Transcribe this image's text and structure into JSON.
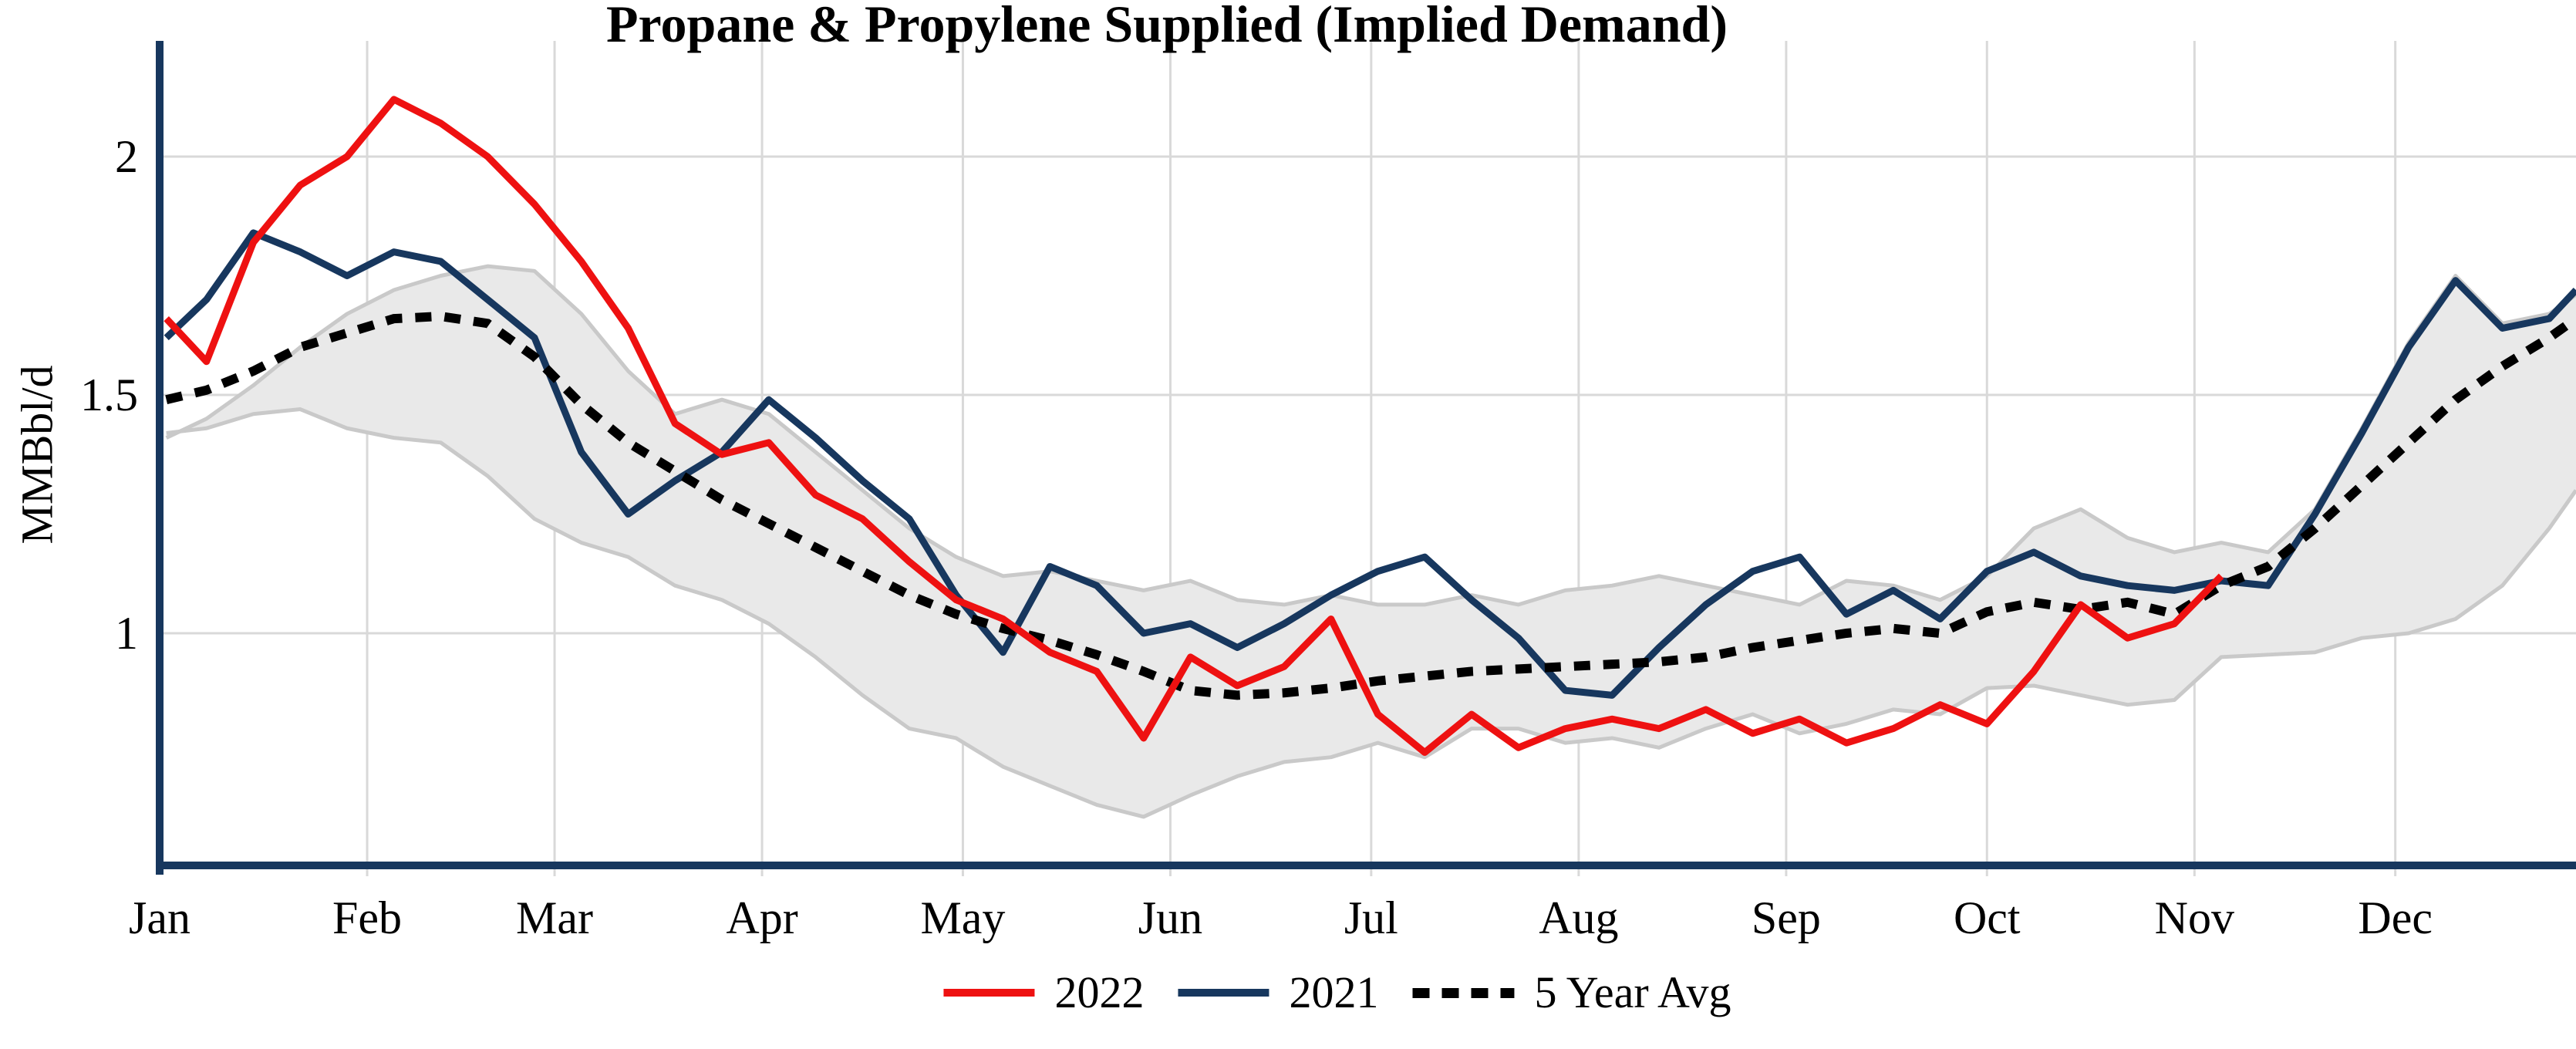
{
  "title": "Propane & Propylene Supplied (Implied Demand)",
  "y_axis_title": "MMBbl/d",
  "legend": {
    "items": [
      {
        "label": "2022",
        "color": "#ee1111",
        "style": "solid"
      },
      {
        "label": "2021",
        "color": "#17375e",
        "style": "solid"
      },
      {
        "label": "5 Year Avg",
        "color": "#000000",
        "style": "dotted"
      }
    ]
  },
  "colors": {
    "red_2022": "#ee1111",
    "navy_2021": "#17375e",
    "avg_dotted": "#000000",
    "band_fill": "#e9e9e9",
    "band_edge": "#c9c9c9",
    "gridline": "#d9d9d9",
    "axis": "#17375e",
    "text": "#000000"
  },
  "chart_data": {
    "type": "line",
    "title": "Propane & Propylene Supplied (Implied Demand)",
    "ylabel": "MMBbl/d",
    "xlabel": "",
    "ylim": [
      0.51,
      2.24
    ],
    "y_ticks": [
      2,
      1.5,
      1
    ],
    "y_tick_labels": [
      "2",
      "1.5",
      "1"
    ],
    "months": [
      "Jan",
      "Feb",
      "Mar",
      "Apr",
      "May",
      "Jun",
      "Jul",
      "Aug",
      "Sep",
      "Oct",
      "Nov",
      "Dec"
    ],
    "month_start_days": [
      0,
      31,
      59,
      90,
      120,
      151,
      181,
      212,
      243,
      273,
      304,
      334
    ],
    "grid": true,
    "legend_position": "bottom",
    "x_unit": "day_of_year",
    "days_full": [
      1,
      7,
      14,
      21,
      28,
      35,
      42,
      49,
      56,
      63,
      70,
      77,
      84,
      91,
      98,
      105,
      112,
      119,
      126,
      133,
      140,
      147,
      154,
      161,
      168,
      175,
      182,
      189,
      196,
      203,
      210,
      217,
      224,
      231,
      238,
      245,
      252,
      259,
      266,
      273,
      280,
      287,
      294,
      301,
      308,
      315,
      322,
      329,
      336,
      343,
      350,
      357,
      361
    ],
    "days_2022": [
      1,
      7,
      14,
      21,
      28,
      35,
      42,
      49,
      56,
      63,
      70,
      77,
      84,
      91,
      98,
      105,
      112,
      119,
      126,
      133,
      140,
      147,
      154,
      161,
      168,
      175,
      182,
      189,
      196,
      203,
      210,
      217,
      224,
      231,
      238,
      245,
      252,
      259,
      266,
      273,
      280,
      287,
      294,
      301,
      308
    ],
    "series": [
      {
        "name": "2022",
        "color": "#ee1111",
        "style": "solid",
        "values": [
          1.66,
          1.57,
          1.82,
          1.94,
          2.0,
          2.12,
          2.07,
          2.0,
          1.9,
          1.78,
          1.64,
          1.44,
          1.375,
          1.4,
          1.29,
          1.24,
          1.15,
          1.07,
          1.03,
          0.96,
          0.92,
          0.78,
          0.95,
          0.89,
          0.93,
          1.03,
          0.83,
          0.75,
          0.83,
          0.76,
          0.8,
          0.82,
          0.8,
          0.84,
          0.79,
          0.82,
          0.77,
          0.8,
          0.85,
          0.81,
          0.92,
          1.06,
          0.99,
          1.02,
          1.12
        ]
      },
      {
        "name": "2021",
        "color": "#17375e",
        "style": "solid",
        "values": [
          1.62,
          1.7,
          1.84,
          1.8,
          1.75,
          1.8,
          1.78,
          1.7,
          1.62,
          1.38,
          1.25,
          1.32,
          1.38,
          1.49,
          1.41,
          1.32,
          1.24,
          1.08,
          0.96,
          1.14,
          1.1,
          1.0,
          1.02,
          0.97,
          1.02,
          1.08,
          1.13,
          1.16,
          1.07,
          0.99,
          0.88,
          0.87,
          0.97,
          1.06,
          1.13,
          1.16,
          1.04,
          1.09,
          1.03,
          1.13,
          1.17,
          1.12,
          1.1,
          1.09,
          1.11,
          1.1,
          1.25,
          1.42,
          1.6,
          1.74,
          1.64,
          1.66,
          1.72
        ]
      },
      {
        "name": "5 Year Avg",
        "color": "#000000",
        "style": "dotted",
        "values": [
          1.49,
          1.51,
          1.55,
          1.6,
          1.63,
          1.66,
          1.665,
          1.65,
          1.58,
          1.48,
          1.4,
          1.34,
          1.28,
          1.23,
          1.18,
          1.13,
          1.08,
          1.04,
          1.01,
          0.985,
          0.955,
          0.92,
          0.88,
          0.87,
          0.875,
          0.885,
          0.9,
          0.91,
          0.92,
          0.925,
          0.93,
          0.935,
          0.94,
          0.95,
          0.97,
          0.985,
          1.0,
          1.01,
          1.0,
          1.045,
          1.065,
          1.05,
          1.065,
          1.04,
          1.1,
          1.14,
          1.22,
          1.31,
          1.4,
          1.49,
          1.56,
          1.62,
          1.66
        ]
      }
    ],
    "band": {
      "name": "5 Year Range",
      "top": [
        1.41,
        1.45,
        1.52,
        1.6,
        1.67,
        1.72,
        1.75,
        1.77,
        1.76,
        1.67,
        1.55,
        1.46,
        1.49,
        1.46,
        1.38,
        1.3,
        1.22,
        1.16,
        1.12,
        1.13,
        1.11,
        1.09,
        1.11,
        1.07,
        1.06,
        1.08,
        1.06,
        1.06,
        1.08,
        1.06,
        1.09,
        1.1,
        1.12,
        1.1,
        1.08,
        1.06,
        1.11,
        1.1,
        1.07,
        1.12,
        1.22,
        1.26,
        1.2,
        1.17,
        1.19,
        1.17,
        1.26,
        1.43,
        1.61,
        1.75,
        1.65,
        1.67,
        1.71
      ],
      "bottom": [
        1.42,
        1.43,
        1.46,
        1.47,
        1.43,
        1.41,
        1.4,
        1.33,
        1.24,
        1.19,
        1.16,
        1.1,
        1.07,
        1.02,
        0.95,
        0.87,
        0.8,
        0.78,
        0.72,
        0.68,
        0.64,
        0.615,
        0.66,
        0.7,
        0.73,
        0.74,
        0.77,
        0.74,
        0.8,
        0.8,
        0.77,
        0.78,
        0.76,
        0.8,
        0.83,
        0.79,
        0.81,
        0.84,
        0.83,
        0.885,
        0.89,
        0.87,
        0.85,
        0.86,
        0.95,
        0.955,
        0.96,
        0.99,
        1.0,
        1.03,
        1.1,
        1.22,
        1.3
      ]
    }
  }
}
